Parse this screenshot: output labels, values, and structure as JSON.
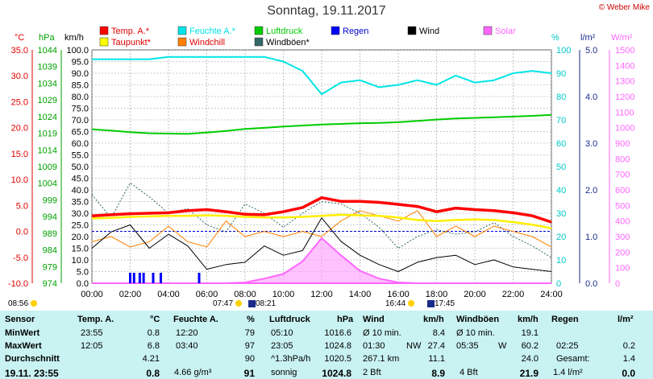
{
  "title": "Sonntag, 19.11.2017",
  "credit": "© Weber Mike",
  "legend": [
    {
      "label": "Temp. A.*",
      "color": "#ff0000"
    },
    {
      "label": "Taupunkt*",
      "color": "#ffff00"
    },
    {
      "label": "Feuchte A.*",
      "color": "#00e5e5"
    },
    {
      "label": "Windchill",
      "color": "#ff8000"
    },
    {
      "label": "Luftdruck",
      "color": "#00cc00"
    },
    {
      "label": "Windböen*",
      "color": "#336666"
    },
    {
      "label": "Regen",
      "color": "#0000ff"
    },
    {
      "label": "Wind",
      "color": "#000000"
    },
    {
      "label": "Solar",
      "color": "#ff66ff"
    }
  ],
  "axis_units": {
    "temp": "°C",
    "hpa": "hPa",
    "kmh": "km/h",
    "pct": "%",
    "rain": "l/m²",
    "solar": "W/m²"
  },
  "axis_ticks": {
    "temp": [
      "35.0",
      "30.0",
      "25.0",
      "20.0",
      "15.0",
      "10.0",
      "5.0",
      "0.0",
      "-5.0",
      "-10.0"
    ],
    "hpa": [
      "1044",
      "1039",
      "1034",
      "1029",
      "1024",
      "1019",
      "1014",
      "1009",
      "1004",
      "999",
      "994",
      "989",
      "984",
      "979",
      "974"
    ],
    "kmh": [
      "100.0",
      "95.0",
      "90.0",
      "85.0",
      "80.0",
      "75.0",
      "70.0",
      "65.0",
      "60.0",
      "55.0",
      "50.0",
      "45.0",
      "40.0",
      "35.0",
      "30.0",
      "25.0",
      "20.0",
      "15.0",
      "10.0",
      "5.0",
      "0.0"
    ],
    "pct": [
      "100",
      "90",
      "80",
      "70",
      "60",
      "50",
      "40",
      "30",
      "20",
      "10",
      "0"
    ],
    "rain": [
      "5.0",
      "4.0",
      "3.0",
      "2.0",
      "1.0",
      "0.0"
    ],
    "solar": [
      "1500",
      "1400",
      "1300",
      "1200",
      "1100",
      "1000",
      "900",
      "800",
      "700",
      "600",
      "500",
      "400",
      "300",
      "200",
      "100",
      "0"
    ],
    "time": [
      "00:00",
      "02:00",
      "04:00",
      "06:00",
      "08:00",
      "10:00",
      "12:00",
      "14:00",
      "16:00",
      "18:00",
      "20:00",
      "22:00",
      "24:00"
    ]
  },
  "timeline": {
    "left_time": "08:56",
    "sunrise": "07:47",
    "moonrise": "08:21",
    "sunset": "16:44",
    "moonset": "17:45"
  },
  "chart_data": {
    "type": "line",
    "xlabel": "",
    "x_hours": [
      0,
      1,
      2,
      3,
      4,
      5,
      6,
      7,
      8,
      9,
      10,
      11,
      12,
      13,
      14,
      15,
      16,
      17,
      18,
      19,
      20,
      21,
      22,
      23,
      24
    ],
    "series": [
      {
        "name": "Temp. A.*",
        "unit": "°C",
        "values": [
          3.0,
          3.2,
          3.4,
          3.5,
          3.6,
          4.0,
          4.2,
          3.8,
          3.3,
          3.2,
          3.8,
          4.6,
          6.5,
          5.8,
          5.8,
          5.6,
          5.2,
          4.8,
          3.8,
          4.5,
          4.2,
          4.0,
          3.6,
          3.0,
          1.8
        ]
      },
      {
        "name": "Taupunkt*",
        "unit": "°C",
        "values": [
          2.5,
          2.6,
          2.8,
          2.9,
          3.0,
          3.0,
          3.1,
          3.0,
          2.8,
          2.7,
          2.7,
          2.8,
          3.0,
          3.2,
          3.1,
          3.0,
          2.7,
          2.2,
          2.0,
          2.2,
          2.3,
          2.2,
          1.8,
          1.3,
          0.6
        ]
      },
      {
        "name": "Feuchte A.*",
        "unit": "%",
        "values": [
          96,
          96,
          96,
          96,
          97,
          97,
          97,
          97,
          97,
          97,
          95,
          91,
          81,
          86,
          87,
          84,
          85,
          87,
          85,
          89,
          86,
          87,
          90,
          91,
          90
        ]
      },
      {
        "name": "Windchill",
        "unit": "°C",
        "values": [
          -2,
          -1,
          -3,
          -2,
          1,
          -2,
          -3,
          2,
          -1,
          0,
          -1,
          0,
          -1,
          2,
          4,
          3,
          2,
          4,
          -1,
          1,
          -1,
          1,
          0,
          -1,
          -3
        ]
      },
      {
        "name": "Luftdruck",
        "unit": "hPa",
        "values": [
          1020.2,
          1019.8,
          1019.3,
          1019.0,
          1018.9,
          1018.8,
          1019.2,
          1019.7,
          1020.3,
          1020.6,
          1021.0,
          1021.3,
          1021.6,
          1021.8,
          1022.0,
          1022.1,
          1022.3,
          1022.7,
          1023.1,
          1023.4,
          1023.6,
          1023.8,
          1024.0,
          1024.2,
          1024.5
        ]
      },
      {
        "name": "Wind",
        "unit": "km/h",
        "values": [
          15,
          22,
          25,
          15,
          21,
          16,
          6,
          8,
          9,
          16,
          12,
          14,
          28,
          18,
          12,
          8,
          5,
          9,
          11,
          12,
          8,
          10,
          7,
          6,
          5
        ]
      },
      {
        "name": "Windböen*",
        "unit": "km/h",
        "values": [
          38,
          28,
          43,
          37,
          30,
          32,
          25,
          22,
          34,
          30,
          24,
          30,
          35,
          34,
          30,
          24,
          15,
          20,
          23,
          21,
          22,
          26,
          20,
          16,
          11
        ]
      },
      {
        "name": "Solar",
        "unit": "W/m²",
        "values": [
          0,
          0,
          0,
          0,
          0,
          0,
          0,
          0,
          5,
          30,
          60,
          140,
          290,
          180,
          80,
          30,
          5,
          0,
          0,
          0,
          0,
          0,
          0,
          0,
          0
        ]
      }
    ],
    "rain_events_hours": [
      2.0,
      2.2,
      2.5,
      2.7,
      3.2,
      3.6,
      5.6
    ],
    "ylim": {
      "temp": [
        -10,
        35
      ],
      "hpa": [
        974,
        1044
      ],
      "kmh": [
        0,
        100
      ],
      "pct": [
        0,
        100
      ],
      "rain": [
        0,
        5
      ],
      "solar": [
        0,
        1500
      ]
    },
    "grid": true
  },
  "table": {
    "headers": {
      "sensor": "Sensor",
      "temp": "Temp. A.",
      "temp_u": "°C",
      "hum": "Feuchte A.",
      "hum_u": "%",
      "pres": "Luftdruck",
      "pres_u": "hPa",
      "wind": "Wind",
      "wind_u": "km/h",
      "gust": "Windböen",
      "gust_u": "km/h",
      "rain": "Regen",
      "rain_u": "l/m²"
    },
    "rows": [
      {
        "label": "MinWert",
        "temp_t": "23:55",
        "temp_v": "0.8",
        "hum_t": "12:20",
        "hum_v": "79",
        "pres_t": "05:10",
        "pres_v": "1016.6",
        "wind_t": "Ø 10 min.",
        "wind_v": "8.4",
        "gust_t": "Ø 10 min.",
        "gust_v": "19.1",
        "rain_t": "",
        "rain_v": ""
      },
      {
        "label": "MaxWert",
        "temp_t": "12:05",
        "temp_v": "6.8",
        "hum_t": "03:40",
        "hum_v": "97",
        "pres_t": "23:05",
        "pres_v": "1024.8",
        "wind_t": "01:30",
        "wind_m": "NW",
        "wind_v": "27.4",
        "gust_t": "05:35",
        "gust_m": "W",
        "gust_v": "60.2",
        "rain_t": "02:25",
        "rain_v": "0.2"
      },
      {
        "label": "Durchschnitt",
        "temp_t": "",
        "temp_v": "4.21",
        "hum_t": "",
        "hum_v": "90",
        "pres_t": "^1.3hPa/h",
        "pres_v": "1020.5",
        "wind_t": "267.1 km",
        "wind_v": "11.1",
        "gust_t": "",
        "gust_v": "24.0",
        "rain_t": "Gesamt:",
        "rain_v": "1.4"
      }
    ],
    "current": {
      "label": "19.11. 23:55",
      "temp": "0.8",
      "hum_extra": "4.66 g/m³",
      "hum": "91",
      "pres_trend": "sonnig",
      "pres": "1024.8",
      "wind_bft": "2 Bft",
      "wind": "8.9",
      "gust_bft": "4 Bft",
      "gust": "21.9",
      "rain_rate": "1.4 l/m²",
      "rain": "0.0"
    }
  }
}
